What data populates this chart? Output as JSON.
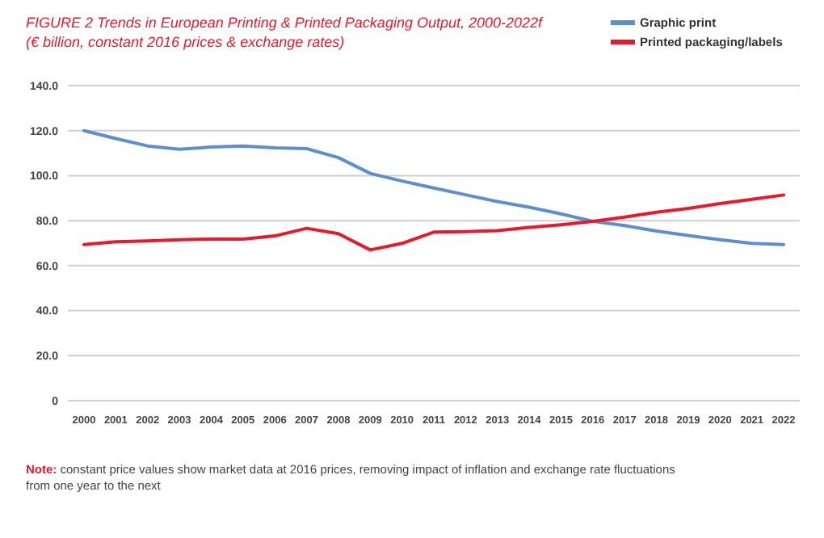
{
  "chart_data": {
    "type": "line",
    "title": "FIGURE 2 Trends in European Printing & Printed Packaging Output, 2000-2022f",
    "subtitle": "(€ billion, constant 2016 prices & exchange rates)",
    "categories": [
      "2000",
      "2001",
      "2002",
      "2003",
      "2004",
      "2005",
      "2006",
      "2007",
      "2008",
      "2009",
      "2010",
      "2011",
      "2012",
      "2013",
      "2014",
      "2015",
      "2016",
      "2017",
      "2018",
      "2019",
      "2020",
      "2021",
      "2022"
    ],
    "series": [
      {
        "name": "Graphic print",
        "color": "#5b8fd0",
        "values": [
          120,
          116.5,
          113.2,
          111.7,
          112.7,
          113.2,
          112.4,
          112,
          108,
          101,
          97.6,
          94.5,
          91.5,
          88.5,
          86,
          83,
          79.7,
          77.8,
          75.4,
          73.4,
          71.5,
          69.9,
          69.4
        ]
      },
      {
        "name": "Printed packaging/labels",
        "color": "#e8192c",
        "values": [
          69.4,
          70.6,
          71,
          71.5,
          71.8,
          71.8,
          73.2,
          76.6,
          74.2,
          67,
          69.9,
          74.9,
          75.1,
          75.6,
          77,
          78.2,
          79.7,
          81.6,
          83.7,
          85.4,
          87.6,
          89.5,
          91.4
        ]
      }
    ],
    "ylim": [
      0,
      140
    ],
    "yticks": [
      {
        "value": 0,
        "label": "0"
      },
      {
        "value": 20,
        "label": "20.0"
      },
      {
        "value": 40,
        "label": "40.0"
      },
      {
        "value": 60,
        "label": "60.0"
      },
      {
        "value": 80,
        "label": "80.0"
      },
      {
        "value": 100,
        "label": "100.0"
      },
      {
        "value": 120,
        "label": "120.0"
      },
      {
        "value": 140,
        "label": "140.0"
      }
    ],
    "grid": "y",
    "legend": "top right",
    "marker": "none",
    "line_style": "solid",
    "annotations": [
      "Note: constant price values show market data at 2016 prices, removing impact of inflation and exchange rate fluctuations from one year to the next"
    ]
  }
}
